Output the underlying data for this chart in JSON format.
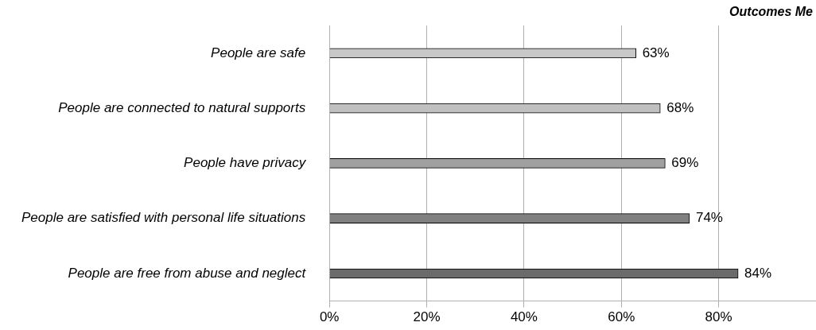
{
  "chart_data": {
    "type": "bar",
    "orientation": "horizontal",
    "title": "Outcomes Me",
    "categories": [
      "People are safe",
      "People are connected to natural supports",
      "People have privacy",
      "People are satisfied with personal life situations",
      "People are free from abuse and neglect"
    ],
    "values": [
      63,
      68,
      69,
      74,
      84
    ],
    "colors": [
      "#c8c8c8",
      "#c0c0c0",
      "#a0a0a0",
      "#808080",
      "#6a6a6a"
    ],
    "value_labels": [
      "63%",
      "68%",
      "69%",
      "74%",
      "84%"
    ],
    "xlim": [
      0,
      100
    ],
    "xticks": [
      {
        "value": 0,
        "label": "0%"
      },
      {
        "value": 20,
        "label": "20%"
      },
      {
        "value": 40,
        "label": "40%"
      },
      {
        "value": 60,
        "label": "60%"
      },
      {
        "value": 80,
        "label": "80%"
      }
    ],
    "grid": "x",
    "legend": false
  }
}
